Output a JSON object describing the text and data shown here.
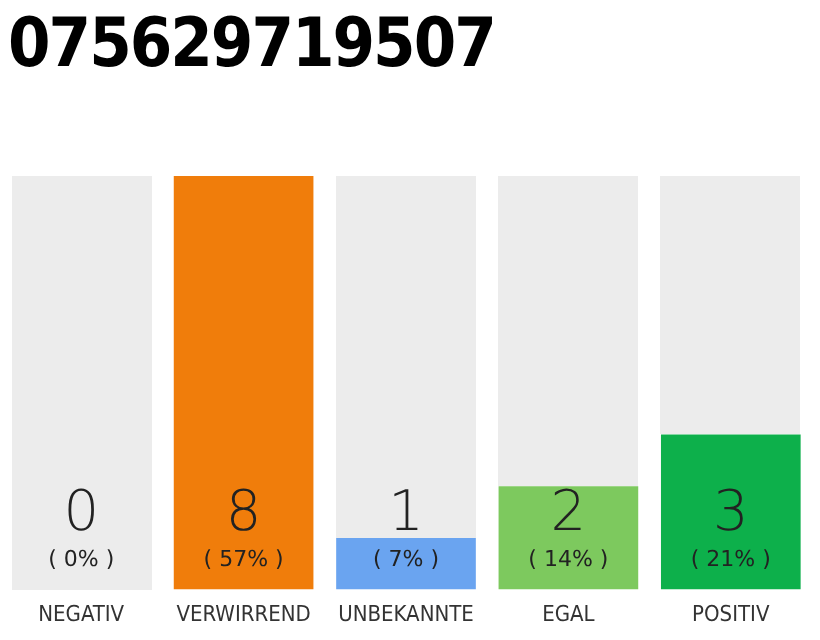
{
  "chart_data": {
    "type": "bar",
    "title": "075629719507",
    "categories": [
      "NEGATIV",
      "VERWIRREND",
      "UNBEKANNTE",
      "EGAL",
      "POSITIV"
    ],
    "values": [
      0,
      8,
      1,
      2,
      3
    ],
    "colors": [
      "#e03030",
      "#f07d0b",
      "#6aa4f0",
      "#7dc95e",
      "#0db04b"
    ],
    "data_labels": true,
    "annotations": [
      "( 0% )",
      "( 57% )",
      "( 7% )",
      "( 14% )",
      "( 21% )"
    ],
    "grid": false,
    "legend": false,
    "tick_labels": "x"
  }
}
